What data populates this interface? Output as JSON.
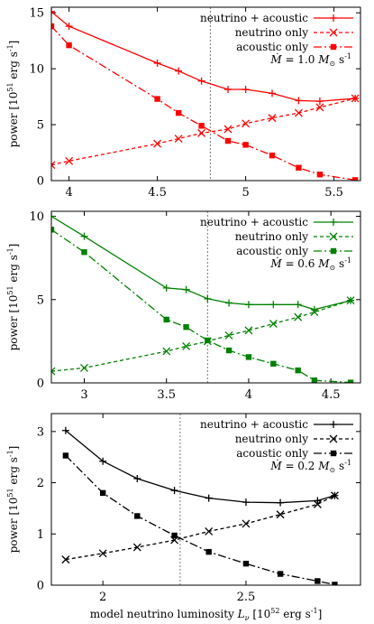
{
  "chart_data": [
    {
      "type": "line",
      "color": "#ff0000",
      "xlim": [
        3.9,
        5.65
      ],
      "ylim": [
        0,
        15.5
      ],
      "xticks": [
        4,
        4.5,
        5,
        5.5
      ],
      "yticks": [
        0,
        5,
        10,
        15
      ],
      "xtick_labels": [
        "4",
        "4.5",
        "5",
        "5.5"
      ],
      "ytick_labels": [
        "0",
        "5",
        "10",
        "15"
      ],
      "ylabel": "power [10^51 erg s^-1]",
      "xlabel": "",
      "legend_position": "top-right",
      "vline_x": 4.8,
      "annotation": "Ṁ = 1.0 M⊙ s⁻¹",
      "series": [
        {
          "name": "neutrino + acoustic",
          "marker": "plus",
          "dash": "solid",
          "x": [
            3.9,
            4.0,
            4.5,
            4.62,
            4.75,
            4.9,
            5.0,
            5.15,
            5.3,
            5.42,
            5.62
          ],
          "y": [
            15.1,
            13.8,
            10.5,
            9.8,
            8.9,
            8.15,
            8.15,
            7.8,
            7.15,
            7.1,
            7.35
          ]
        },
        {
          "name": "neutrino only",
          "marker": "x",
          "dash": "dashed",
          "x": [
            3.9,
            4.0,
            4.5,
            4.62,
            4.75,
            4.9,
            5.0,
            5.15,
            5.3,
            5.42,
            5.62
          ],
          "y": [
            1.4,
            1.75,
            3.3,
            3.75,
            4.25,
            4.6,
            5.1,
            5.6,
            6.05,
            6.55,
            7.35
          ]
        },
        {
          "name": "acoustic only",
          "marker": "square",
          "dash": "dashdot",
          "x": [
            3.9,
            4.0,
            4.5,
            4.62,
            4.75,
            4.9,
            5.0,
            5.15,
            5.3,
            5.42,
            5.62
          ],
          "y": [
            13.8,
            12.1,
            7.3,
            6.05,
            4.9,
            3.55,
            3.2,
            2.25,
            1.15,
            0.55,
            0.05
          ]
        }
      ]
    },
    {
      "type": "line",
      "color": "#008000",
      "xlim": [
        2.8,
        4.68
      ],
      "ylim": [
        0,
        10.3
      ],
      "xticks": [
        3,
        3.5,
        4,
        4.5
      ],
      "yticks": [
        0,
        5,
        10
      ],
      "xtick_labels": [
        "3",
        "3.5",
        "4",
        "4.5"
      ],
      "ytick_labels": [
        "0",
        "5",
        "10"
      ],
      "ylabel": "power [10^51 erg s^-1]",
      "xlabel": "",
      "legend_position": "top-right",
      "vline_x": 3.75,
      "annotation": "Ṁ = 0.6 M⊙ s⁻¹",
      "series": [
        {
          "name": "neutrino + acoustic",
          "marker": "plus",
          "dash": "solid",
          "x": [
            2.8,
            3.0,
            3.5,
            3.62,
            3.75,
            3.88,
            4.0,
            4.15,
            4.3,
            4.4,
            4.62
          ],
          "y": [
            10.0,
            8.8,
            5.7,
            5.6,
            5.05,
            4.8,
            4.7,
            4.7,
            4.7,
            4.4,
            4.95
          ]
        },
        {
          "name": "neutrino only",
          "marker": "x",
          "dash": "dashed",
          "x": [
            2.8,
            3.0,
            3.5,
            3.62,
            3.75,
            3.88,
            4.0,
            4.15,
            4.3,
            4.4,
            4.62
          ],
          "y": [
            0.7,
            0.9,
            1.9,
            2.2,
            2.5,
            2.85,
            3.15,
            3.55,
            3.95,
            4.25,
            4.95
          ]
        },
        {
          "name": "acoustic only",
          "marker": "square",
          "dash": "dashdot",
          "x": [
            2.8,
            3.0,
            3.5,
            3.62,
            3.75,
            3.88,
            4.0,
            4.15,
            4.3,
            4.4,
            4.62
          ],
          "y": [
            9.2,
            7.85,
            3.8,
            3.35,
            2.55,
            1.95,
            1.55,
            1.15,
            0.75,
            0.15,
            0.02
          ]
        }
      ]
    },
    {
      "type": "line",
      "color": "#000000",
      "xlim": [
        1.82,
        2.9
      ],
      "ylim": [
        0,
        3.35
      ],
      "xticks": [
        2,
        2.5
      ],
      "yticks": [
        0,
        1,
        2,
        3
      ],
      "xtick_labels": [
        "2",
        "2.5"
      ],
      "ytick_labels": [
        "0",
        "1",
        "2",
        "3"
      ],
      "ylabel": "power [10^51 erg s^-1]",
      "xlabel": "model neutrino luminosity L_ν [10^52 erg s^-1]",
      "legend_position": "top-right",
      "vline_x": 2.27,
      "annotation": "Ṁ = 0.2 M⊙ s⁻¹",
      "series": [
        {
          "name": "neutrino + acoustic",
          "marker": "plus",
          "dash": "solid",
          "x": [
            1.87,
            2.0,
            2.12,
            2.25,
            2.37,
            2.5,
            2.62,
            2.75,
            2.81
          ],
          "y": [
            3.02,
            2.42,
            2.08,
            1.85,
            1.7,
            1.62,
            1.61,
            1.65,
            1.75
          ]
        },
        {
          "name": "neutrino only",
          "marker": "x",
          "dash": "dashed",
          "x": [
            1.87,
            2.0,
            2.12,
            2.25,
            2.37,
            2.5,
            2.62,
            2.75,
            2.81
          ],
          "y": [
            0.5,
            0.62,
            0.74,
            0.88,
            1.05,
            1.2,
            1.38,
            1.58,
            1.75
          ]
        },
        {
          "name": "acoustic only",
          "marker": "square",
          "dash": "dashdot",
          "x": [
            1.87,
            2.0,
            2.12,
            2.25,
            2.37,
            2.5,
            2.62,
            2.75,
            2.81
          ],
          "y": [
            2.53,
            1.8,
            1.35,
            0.97,
            0.65,
            0.42,
            0.22,
            0.08,
            0.01
          ]
        }
      ]
    }
  ]
}
